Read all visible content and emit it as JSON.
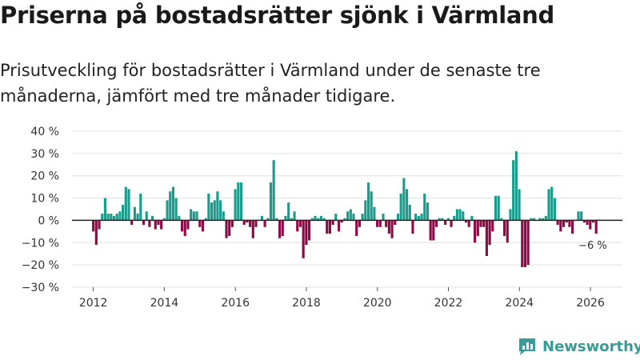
{
  "header": {
    "title": "Priserna på bostadsrätter sjönk i Värmland",
    "subtitle": "Prisutveckling för bostadsrätter i Värmland under de senaste tre månaderna, jämfört med tre månader tidigare."
  },
  "brand": {
    "name": "Newsworthy",
    "icon": "newsworthy-logo-icon",
    "color": "#3a9a97"
  },
  "chart_data": {
    "type": "bar",
    "title": "Priserna på bostadsrätter sjönk i Värmland",
    "subtitle": "Prisutveckling för bostadsrätter i Värmland under de senaste tre månaderna, jämfört med tre månader tidigare.",
    "xlabel": "",
    "ylabel": "",
    "x_start": 2012.0,
    "x_step": 0.0833,
    "xlim": [
      2011.4,
      2026.9
    ],
    "ylim": [
      -30,
      40
    ],
    "yticks": [
      -30,
      -20,
      -10,
      0,
      10,
      20,
      30,
      40
    ],
    "ytick_labels": [
      "−30 %",
      "−20 %",
      "−10 %",
      "0 %",
      "10 %",
      "20 %",
      "30 %",
      "40 %"
    ],
    "xticks": [
      2012,
      2014,
      2016,
      2018,
      2020,
      2022,
      2024,
      2026
    ],
    "xtick_labels": [
      "2012",
      "2014",
      "2016",
      "2018",
      "2020",
      "2022",
      "2024",
      "2026"
    ],
    "grid": true,
    "colors": {
      "positive": "#1a9c8c",
      "negative": "#8c0a45",
      "zero_line": "#222222",
      "grid": "#e0e0e0"
    },
    "annotation": {
      "text": "−6 %",
      "x": 2026.0,
      "y": -6
    },
    "values": [
      -5,
      -11,
      -4,
      3,
      10,
      3,
      3,
      2,
      3,
      4,
      7,
      15,
      14,
      -2,
      6,
      3,
      12,
      -2,
      4,
      -3,
      2,
      -4,
      -2,
      -4,
      1,
      9,
      13,
      15,
      10,
      2,
      -5,
      -7,
      -4,
      5,
      4,
      4,
      -3,
      -5,
      1,
      12,
      8,
      9,
      13,
      9,
      4,
      -8,
      -7,
      -3,
      14,
      17,
      17,
      -2,
      -1,
      -3,
      -8,
      -3,
      0,
      2,
      -3,
      1,
      17,
      27,
      1,
      -8,
      -7,
      2,
      8,
      1,
      4,
      -5,
      -3,
      -17,
      -11,
      -9,
      1,
      2,
      1,
      2,
      1,
      -6,
      -6,
      -2,
      3,
      -5,
      -1,
      1,
      4,
      5,
      3,
      -7,
      -3,
      3,
      9,
      17,
      13,
      6,
      -3,
      -3,
      3,
      -3,
      -6,
      -8,
      -2,
      3,
      12,
      19,
      14,
      7,
      -6,
      3,
      2,
      3,
      12,
      8,
      -9,
      -9,
      -3,
      1,
      1,
      -2,
      1,
      -3,
      2,
      5,
      5,
      4,
      -1,
      -3,
      2,
      -10,
      -7,
      -3,
      -3,
      -16,
      -11,
      -5,
      11,
      11,
      1,
      -7,
      -10,
      5,
      27,
      31,
      14,
      -21,
      -21,
      -20,
      1,
      1,
      0,
      1,
      1,
      2,
      14,
      15,
      10,
      -2,
      -5,
      -3,
      -1,
      -3,
      -6,
      0,
      4,
      4,
      -1,
      -2,
      -4,
      -1,
      -6
    ]
  }
}
